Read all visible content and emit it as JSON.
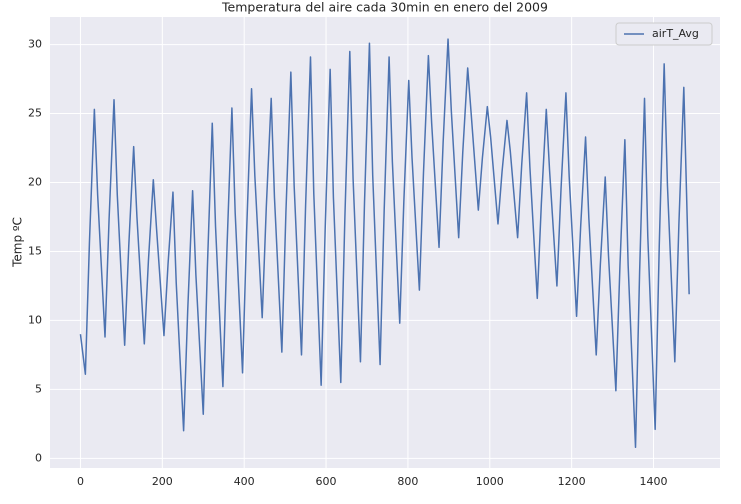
{
  "chart_data": {
    "type": "line",
    "title": "Temperatura del aire cada 30min en enero del 2009",
    "y_label": "Temp ºC",
    "x": [
      0,
      12,
      22,
      34,
      42,
      60,
      70,
      82,
      90,
      108,
      118,
      130,
      138,
      156,
      166,
      178,
      186,
      204,
      214,
      226,
      234,
      252,
      262,
      274,
      282,
      300,
      310,
      322,
      330,
      348,
      358,
      370,
      378,
      396,
      406,
      418,
      426,
      444,
      454,
      466,
      474,
      492,
      502,
      514,
      522,
      540,
      550,
      562,
      570,
      588,
      598,
      610,
      618,
      636,
      646,
      658,
      666,
      684,
      694,
      706,
      714,
      732,
      742,
      754,
      762,
      780,
      790,
      802,
      810,
      828,
      838,
      850,
      858,
      876,
      886,
      898,
      906,
      924,
      934,
      946,
      954,
      972,
      982,
      994,
      1002,
      1020,
      1030,
      1042,
      1050,
      1068,
      1078,
      1090,
      1098,
      1116,
      1126,
      1138,
      1146,
      1164,
      1174,
      1186,
      1194,
      1212,
      1222,
      1234,
      1242,
      1260,
      1270,
      1282,
      1290,
      1308,
      1318,
      1330,
      1338,
      1356,
      1366,
      1378,
      1386,
      1404,
      1414,
      1426,
      1434,
      1452,
      1462,
      1474,
      1487
    ],
    "series": [
      {
        "name": "airT_Avg",
        "color": "#4c72b0",
        "values": [
          9.0,
          6.1,
          15.7,
          25.3,
          19.1,
          8.8,
          17.4,
          26.0,
          19.1,
          8.2,
          15.4,
          22.6,
          17.5,
          8.3,
          14.3,
          20.2,
          16.6,
          8.9,
          14.1,
          19.3,
          12.7,
          2.0,
          10.7,
          19.4,
          13.3,
          3.2,
          13.8,
          24.3,
          16.8,
          5.2,
          15.3,
          25.4,
          17.8,
          6.2,
          16.5,
          26.8,
          20.5,
          10.2,
          18.2,
          26.1,
          18.9,
          7.7,
          17.9,
          28.0,
          19.8,
          7.5,
          18.3,
          29.1,
          19.2,
          5.3,
          16.8,
          28.2,
          18.9,
          5.5,
          17.5,
          29.5,
          20.3,
          7.0,
          18.6,
          30.1,
          20.5,
          6.8,
          18.0,
          29.1,
          21.5,
          9.8,
          18.6,
          27.4,
          21.8,
          12.2,
          20.7,
          29.2,
          24.3,
          15.3,
          22.9,
          30.4,
          25.2,
          16.0,
          22.2,
          28.3,
          25.2,
          18.0,
          21.8,
          25.5,
          23.3,
          17.0,
          20.8,
          24.5,
          22.3,
          16.0,
          21.3,
          26.5,
          21.1,
          11.6,
          18.5,
          25.3,
          20.9,
          12.5,
          19.5,
          26.5,
          20.4,
          10.3,
          16.8,
          23.3,
          17.4,
          7.5,
          14.0,
          20.4,
          14.7,
          4.9,
          14.0,
          23.1,
          14.0,
          0.8,
          13.5,
          26.1,
          16.1,
          2.1,
          15.4,
          28.6,
          19.8,
          7.0,
          17.0,
          26.9,
          11.9
        ]
      }
    ],
    "xlim": [
      -74.4,
      1562.4
    ],
    "ylim": [
      -0.7,
      32.0
    ],
    "xticks": [
      0,
      200,
      400,
      600,
      800,
      1000,
      1200,
      1400
    ],
    "yticks": [
      0,
      5,
      10,
      15,
      20,
      25,
      30
    ],
    "grid": true,
    "legend": "upper right"
  }
}
